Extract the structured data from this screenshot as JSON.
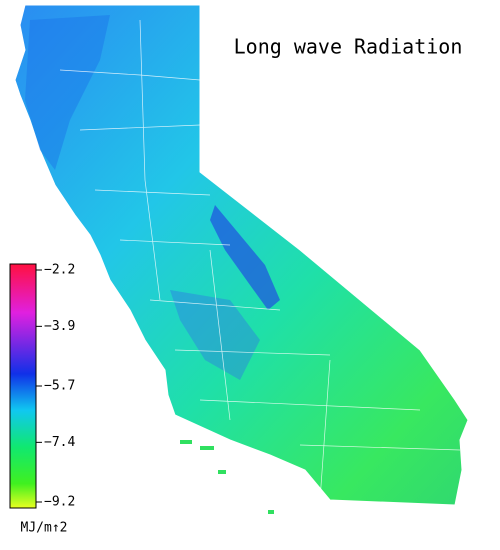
{
  "title": "Long wave Radiation",
  "colorbar": {
    "ticks": [
      {
        "value": -2.2,
        "label": "−2.2"
      },
      {
        "value": -3.9,
        "label": "−3.9"
      },
      {
        "value": -5.7,
        "label": "−5.7"
      },
      {
        "value": -7.4,
        "label": "−7.4"
      },
      {
        "value": -9.2,
        "label": "−9.2"
      }
    ],
    "unit": "MJ/m↑2"
  }
}
